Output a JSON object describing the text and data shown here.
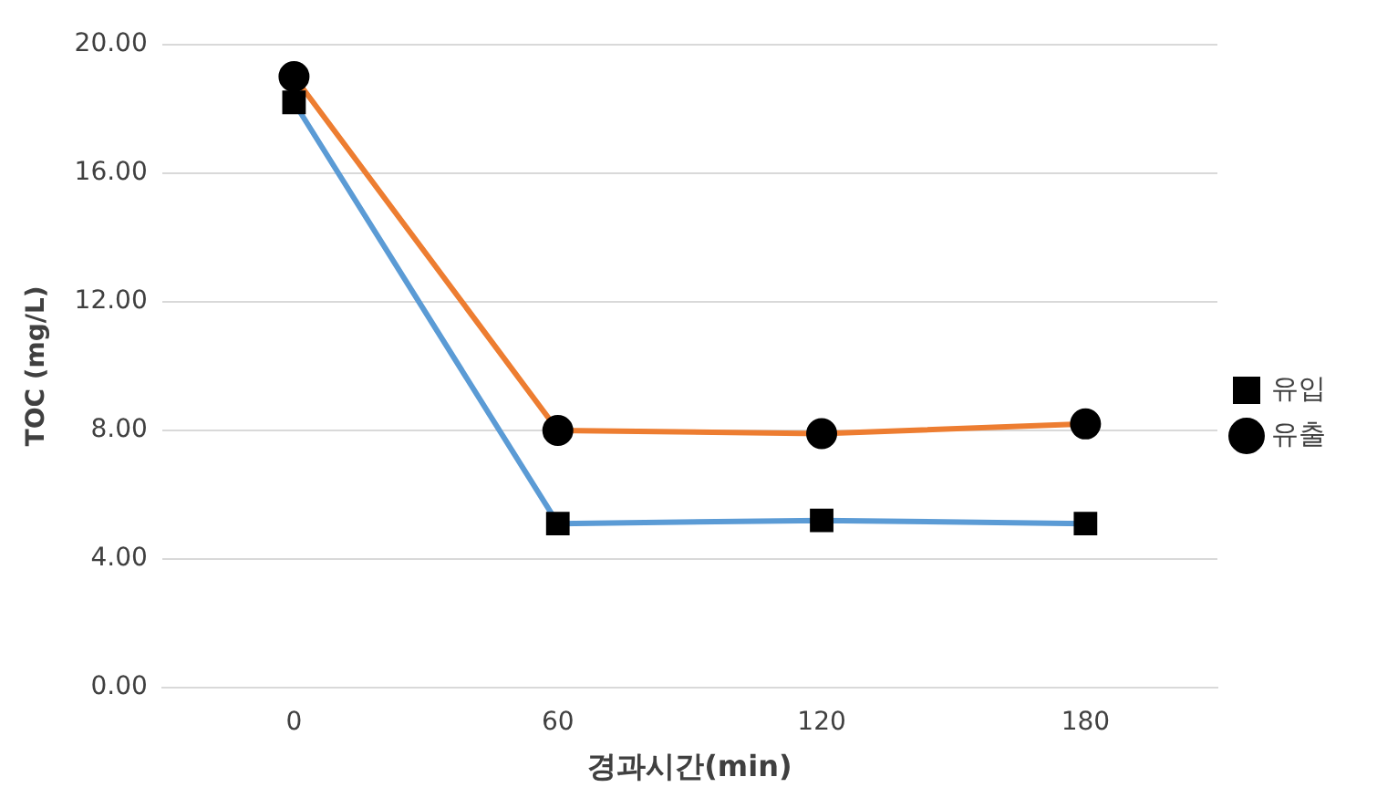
{
  "chart_data": {
    "type": "line",
    "xlabel": "경과시간(min)",
    "ylabel": "TOC (mg/L)",
    "categories": [
      "0",
      "60",
      "120",
      "180"
    ],
    "series": [
      {
        "name": "유입",
        "color": "#5b9bd5",
        "marker": "square",
        "values": [
          18.2,
          5.1,
          5.2,
          5.1
        ]
      },
      {
        "name": "유출",
        "color": "#ed7d31",
        "marker": "circle",
        "values": [
          19.0,
          8.0,
          7.9,
          8.2
        ]
      }
    ],
    "ylim": [
      0,
      20
    ],
    "yticks": [
      {
        "value": 0,
        "label": "0.00"
      },
      {
        "value": 4,
        "label": "4.00"
      },
      {
        "value": 8,
        "label": "8.00"
      },
      {
        "value": 12,
        "label": "12.00"
      },
      {
        "value": 16,
        "label": "16.00"
      },
      {
        "value": 20,
        "label": "20.00"
      }
    ],
    "grid": "y",
    "legend": "right"
  }
}
